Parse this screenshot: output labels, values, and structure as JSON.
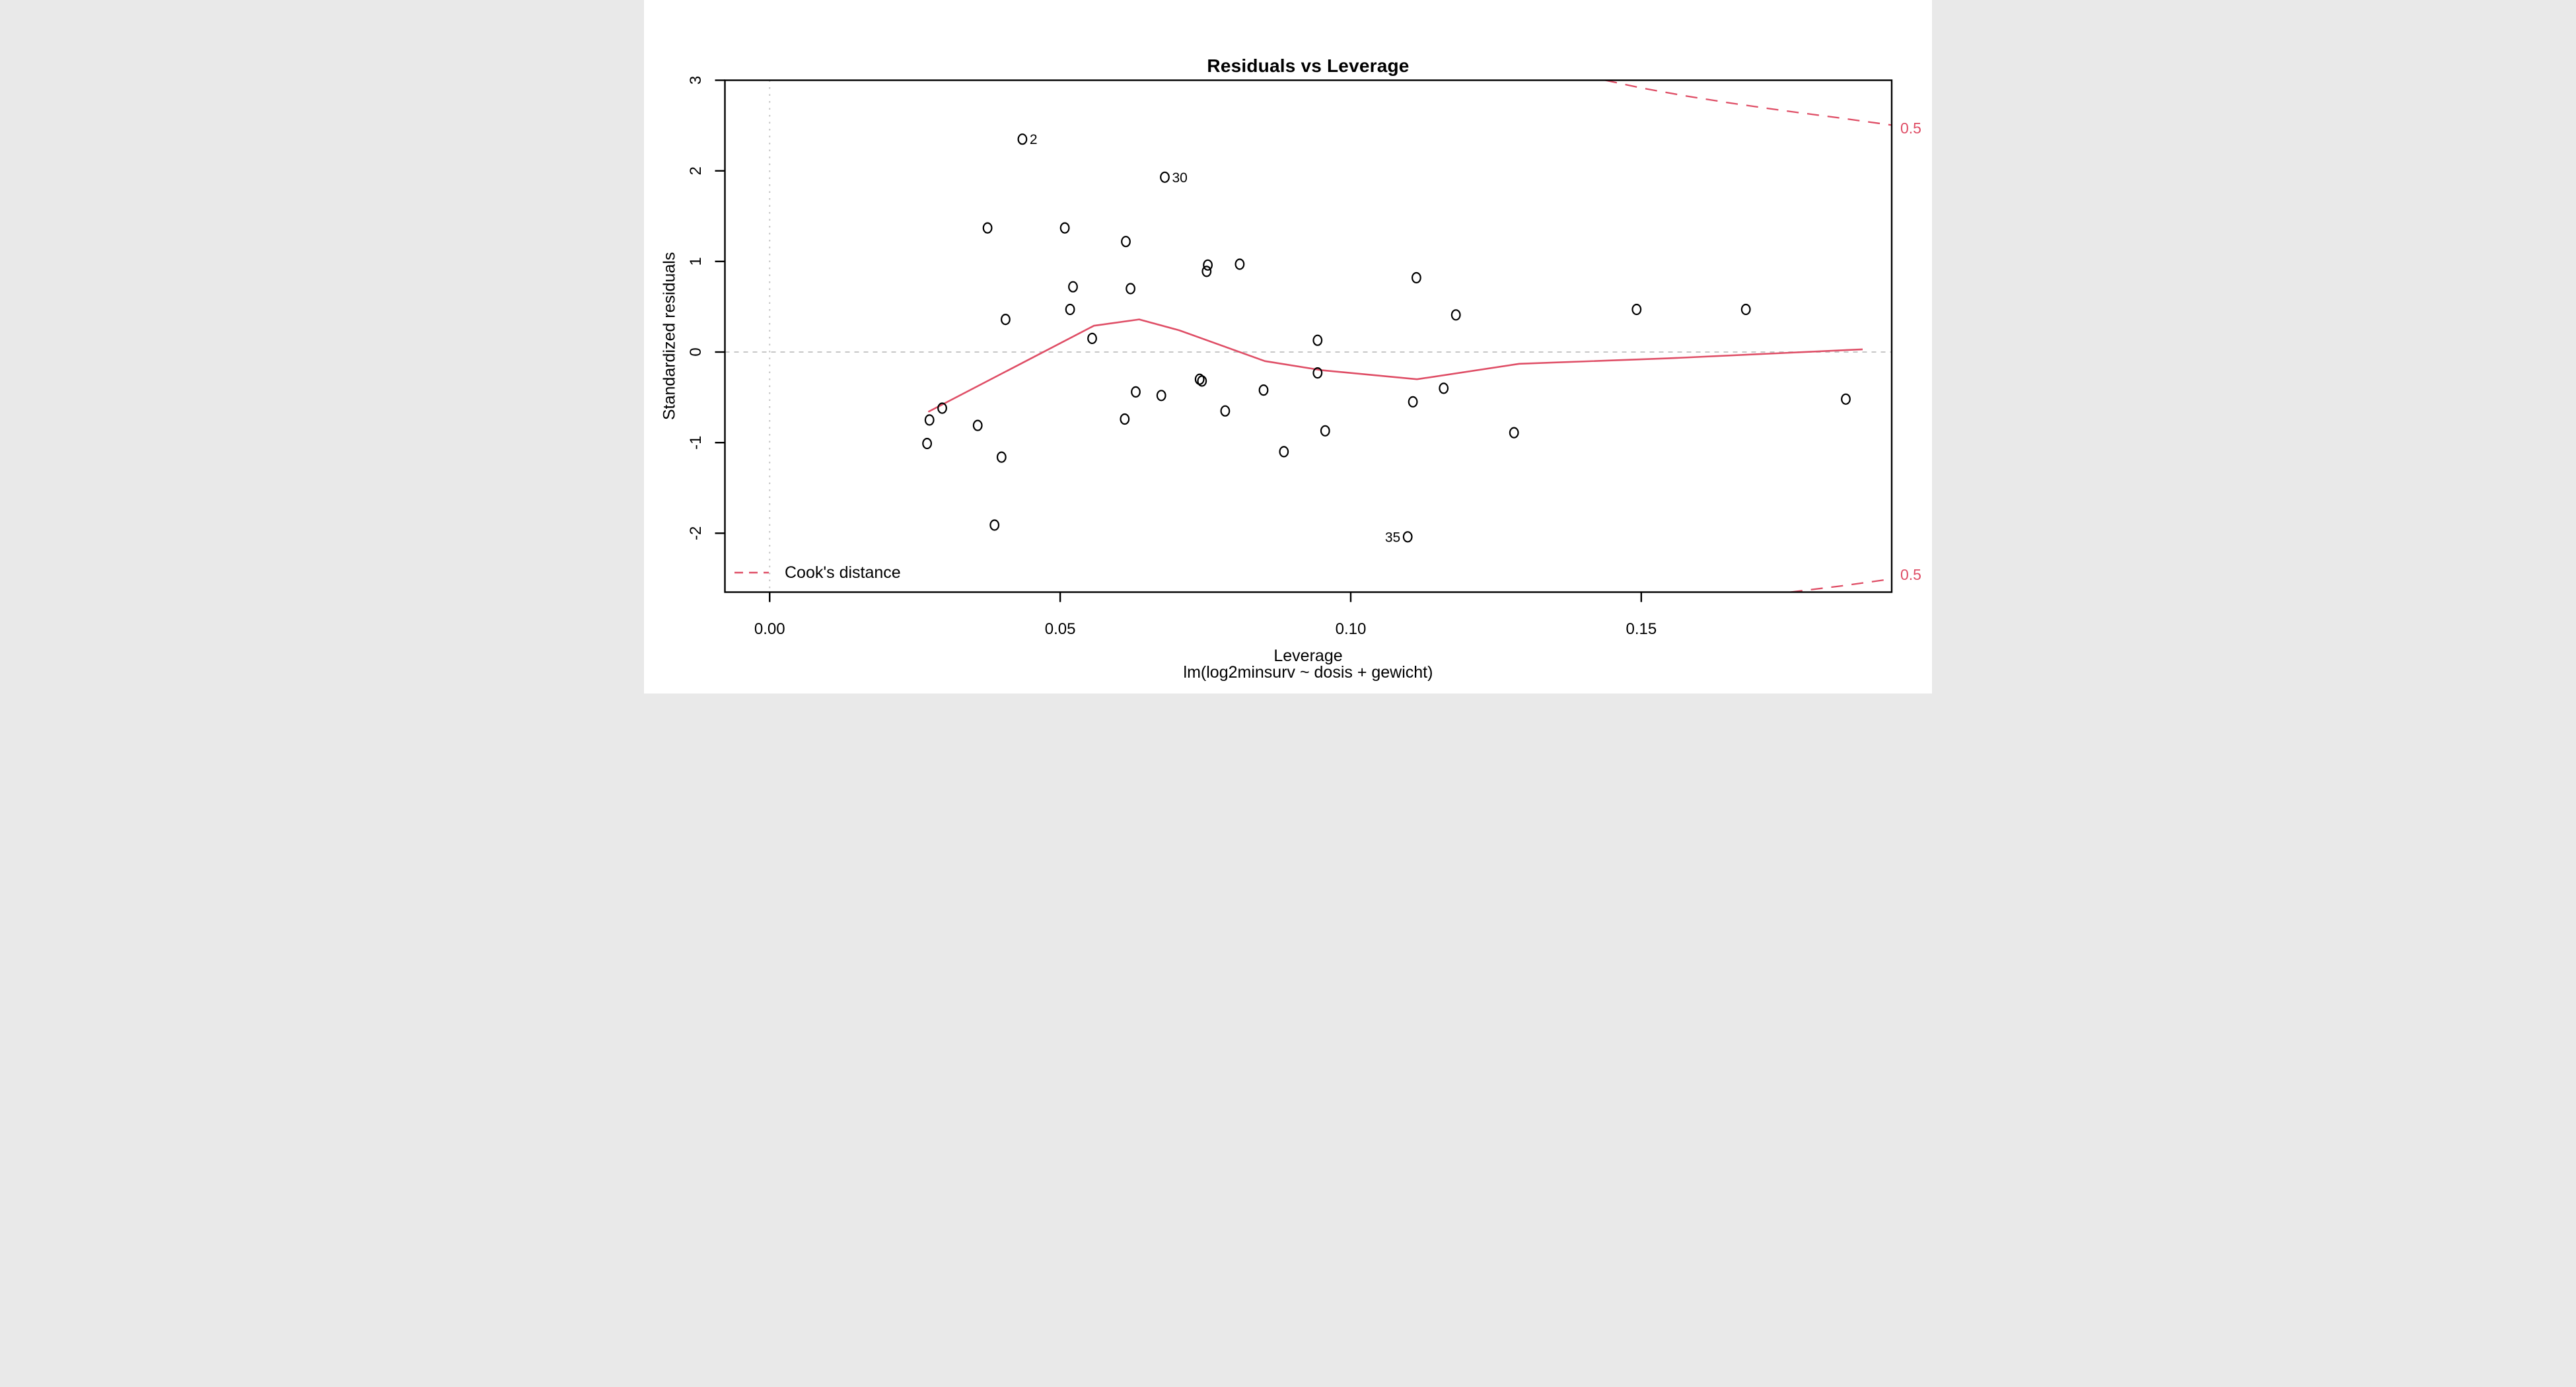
{
  "chart_data": {
    "type": "scatter",
    "title": "Residuals vs Leverage",
    "xlabel": "Leverage",
    "subtitle": "lm(log2minsurv ~ dosis + gewicht)",
    "ylabel": "Standardized residuals",
    "x_range": [
      -0.0077,
      0.1931
    ],
    "y_range": [
      -2.65,
      3.0
    ],
    "x_ticks": {
      "values": [
        0,
        0.05,
        0.1,
        0.15
      ],
      "labels": [
        "0.00",
        "0.05",
        "0.10",
        "0.15"
      ]
    },
    "y_ticks": {
      "values": [
        -2,
        -1,
        0,
        1,
        2,
        3
      ],
      "labels": [
        "-2",
        "-1",
        "0",
        "1",
        "2",
        "3"
      ]
    },
    "reference_lines": {
      "h": 0,
      "v": 0
    },
    "points": [
      {
        "x": 0.0435,
        "y": 2.35,
        "label": "2",
        "label_side": "right"
      },
      {
        "x": 0.068,
        "y": 1.93,
        "label": "30",
        "label_side": "right"
      },
      {
        "x": 0.1098,
        "y": -2.04,
        "label": "35",
        "label_side": "left"
      },
      {
        "x": 0.0375,
        "y": 1.37
      },
      {
        "x": 0.0508,
        "y": 1.37
      },
      {
        "x": 0.0613,
        "y": 1.22
      },
      {
        "x": 0.0754,
        "y": 0.96
      },
      {
        "x": 0.0752,
        "y": 0.89
      },
      {
        "x": 0.0809,
        "y": 0.97
      },
      {
        "x": 0.0522,
        "y": 0.72
      },
      {
        "x": 0.0621,
        "y": 0.7
      },
      {
        "x": 0.0517,
        "y": 0.47
      },
      {
        "x": 0.0406,
        "y": 0.36
      },
      {
        "x": 0.0555,
        "y": 0.15
      },
      {
        "x": 0.0744,
        "y": -0.32
      },
      {
        "x": 0.0297,
        "y": -0.62
      },
      {
        "x": 0.0275,
        "y": -0.75
      },
      {
        "x": 0.0358,
        "y": -0.81
      },
      {
        "x": 0.0271,
        "y": -1.01
      },
      {
        "x": 0.0399,
        "y": -1.16
      },
      {
        "x": 0.0387,
        "y": -1.91
      },
      {
        "x": 0.063,
        "y": -0.44
      },
      {
        "x": 0.0674,
        "y": -0.48
      },
      {
        "x": 0.0611,
        "y": -0.74
      },
      {
        "x": 0.0943,
        "y": 0.13
      },
      {
        "x": 0.0943,
        "y": -0.23
      },
      {
        "x": 0.074,
        "y": -0.3
      },
      {
        "x": 0.085,
        "y": -0.42
      },
      {
        "x": 0.0784,
        "y": -0.65
      },
      {
        "x": 0.0956,
        "y": -0.87
      },
      {
        "x": 0.0885,
        "y": -1.1
      },
      {
        "x": 0.1113,
        "y": 0.82
      },
      {
        "x": 0.1181,
        "y": 0.41
      },
      {
        "x": 0.1492,
        "y": 0.47
      },
      {
        "x": 0.116,
        "y": -0.4
      },
      {
        "x": 0.1107,
        "y": -0.55
      },
      {
        "x": 0.168,
        "y": 0.47
      },
      {
        "x": 0.1852,
        "y": -0.52
      },
      {
        "x": 0.1281,
        "y": -0.89
      }
    ],
    "smooth_line": [
      [
        0.0273,
        -0.66
      ],
      [
        0.0558,
        0.29
      ],
      [
        0.0636,
        0.36
      ],
      [
        0.0705,
        0.24
      ],
      [
        0.0852,
        -0.1
      ],
      [
        0.0949,
        -0.2
      ],
      [
        0.1114,
        -0.3
      ],
      [
        0.129,
        -0.13
      ],
      [
        0.1545,
        -0.07
      ],
      [
        0.1881,
        0.03
      ]
    ],
    "cooks_contours": {
      "level_label": "0.5",
      "upper": [
        [
          0.1438,
          3.0
        ],
        [
          0.15,
          2.915
        ],
        [
          0.158,
          2.823
        ],
        [
          0.166,
          2.742
        ],
        [
          0.175,
          2.66
        ],
        [
          0.184,
          2.585
        ],
        [
          0.1931,
          2.505
        ]
      ],
      "lower": [
        [
          0.1757,
          -2.65
        ],
        [
          0.184,
          -2.585
        ],
        [
          0.1931,
          -2.505
        ]
      ]
    },
    "legend": {
      "label": "Cook's distance",
      "line_style": "dashed"
    },
    "colors": {
      "accent": "#df4e66",
      "reference": "#c6c6c6",
      "foreground": "#000000",
      "background": "#ffffff"
    }
  }
}
